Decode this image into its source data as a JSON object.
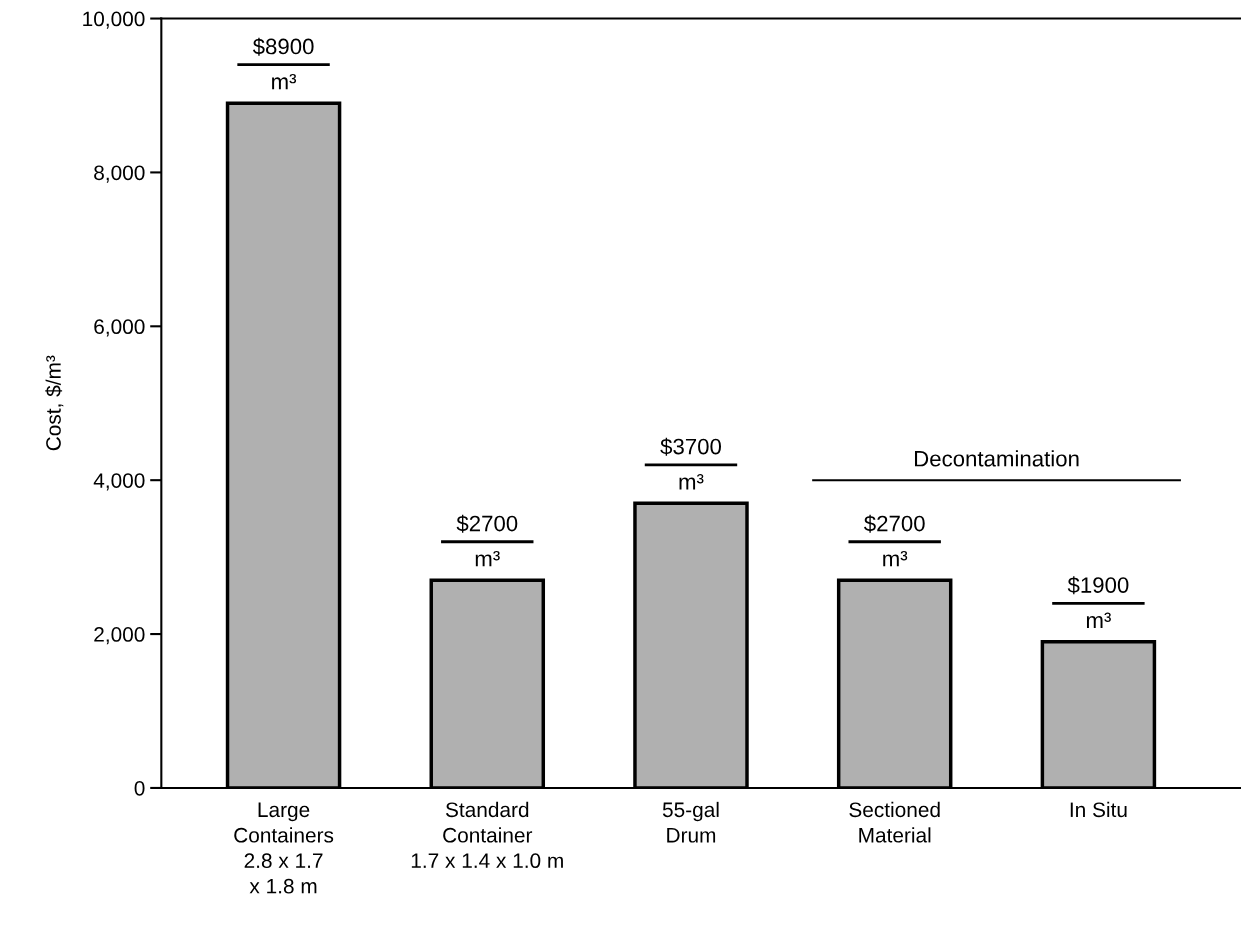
{
  "chart_data": {
    "type": "bar",
    "ylabel": "Cost, $/m³",
    "categories": [
      "Large\nContainers\n2.8 x 1.7\nx 1.8 m",
      "Standard\nContainer\n1.7 x 1.4 x 1.0 m",
      "55-gal\nDrum",
      "Sectioned\nMaterial",
      "In Situ"
    ],
    "values": [
      8900,
      2700,
      3700,
      2700,
      1900
    ],
    "value_labels": [
      "$8900\nm³",
      "$2700\nm³",
      "$3700\nm³",
      "$2700\nm³",
      "$1900\nm³"
    ],
    "color": "#b0b0b0",
    "ylim": [
      0,
      10000
    ],
    "yticks": [
      0,
      {
        "value": 2000,
        "label": "2,000"
      },
      {
        "value": 4000,
        "label": "4,000"
      },
      {
        "value": 6000,
        "label": "6,000"
      },
      {
        "value": 8000,
        "label": "8,000"
      },
      {
        "value": 10000,
        "label": "10,000"
      }
    ],
    "annotations": [
      "Decontamination"
    ],
    "grid": false
  }
}
